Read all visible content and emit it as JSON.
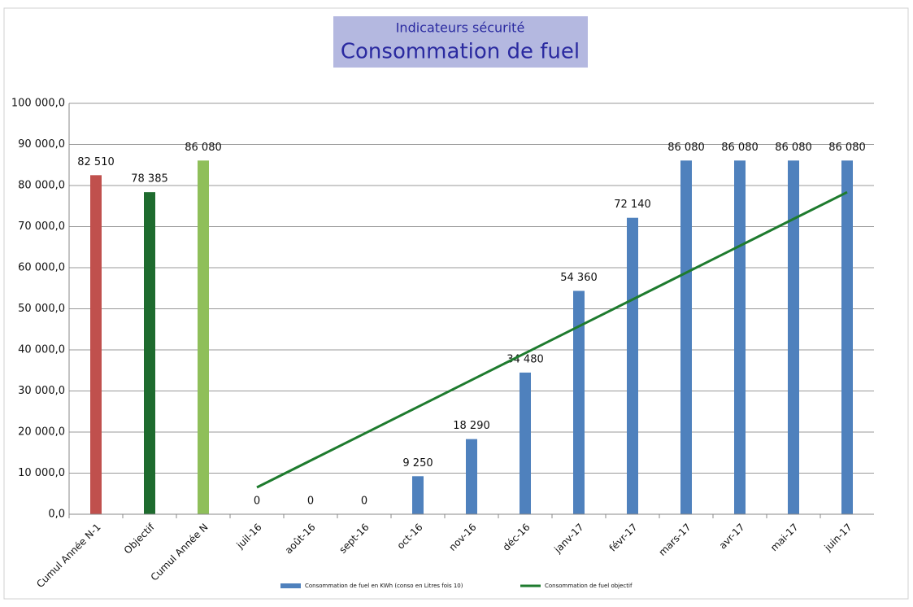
{
  "chart_data": {
    "type": "bar",
    "subtitle": "Indicateurs sécurité",
    "title": "Consommation de fuel",
    "categories": [
      "Cumul Année N-1",
      "Objectif",
      "Cumul Année N",
      "juil-16",
      "août-16",
      "sept-16",
      "oct-16",
      "nov-16",
      "déc-16",
      "janv-17",
      "févr-17",
      "mars-17",
      "avr-17",
      "mai-17",
      "juin-17"
    ],
    "series": [
      {
        "name": "Consommation de fuel en KWh (conso en Litres fois 10)",
        "type": "bar",
        "color": "#4f81bd",
        "colors": [
          "#c0504d",
          "#1e6b2e",
          "#8fbf5a",
          "#4f81bd",
          "#4f81bd",
          "#4f81bd",
          "#4f81bd",
          "#4f81bd",
          "#4f81bd",
          "#4f81bd",
          "#4f81bd",
          "#4f81bd",
          "#4f81bd",
          "#4f81bd",
          "#4f81bd"
        ],
        "values": [
          82510,
          78385,
          86080,
          0,
          0,
          0,
          9250,
          18290,
          34480,
          54360,
          72140,
          86080,
          86080,
          86080,
          86080
        ],
        "value_labels": [
          "82 510",
          "78 385",
          "86 080",
          "0",
          "0",
          "0",
          "9 250",
          "18 290",
          "34 480",
          "54 360",
          "72 140",
          "86 080",
          "86 080",
          "86 080",
          "86 080"
        ]
      },
      {
        "name": "Consommation de fuel objectif",
        "type": "line",
        "color": "#1e7b2e",
        "values": [
          null,
          null,
          null,
          6532,
          13064,
          19596,
          26128,
          32660,
          39193,
          45725,
          52257,
          58789,
          65321,
          71853,
          78385
        ]
      }
    ],
    "ylim": [
      0,
      100000
    ],
    "yticks": [
      {
        "value": 0,
        "label": "0,0"
      },
      {
        "value": 10000,
        "label": "10 000,0"
      },
      {
        "value": 20000,
        "label": "20 000,0"
      },
      {
        "value": 30000,
        "label": "30 000,0"
      },
      {
        "value": 40000,
        "label": "40 000,0"
      },
      {
        "value": 50000,
        "label": "50 000,0"
      },
      {
        "value": 60000,
        "label": "60 000,0"
      },
      {
        "value": 70000,
        "label": "70 000,0"
      },
      {
        "value": 80000,
        "label": "80 000,0"
      },
      {
        "value": 90000,
        "label": "90 000,0"
      },
      {
        "value": 100000,
        "label": "100 000,0"
      }
    ],
    "grid": true
  }
}
